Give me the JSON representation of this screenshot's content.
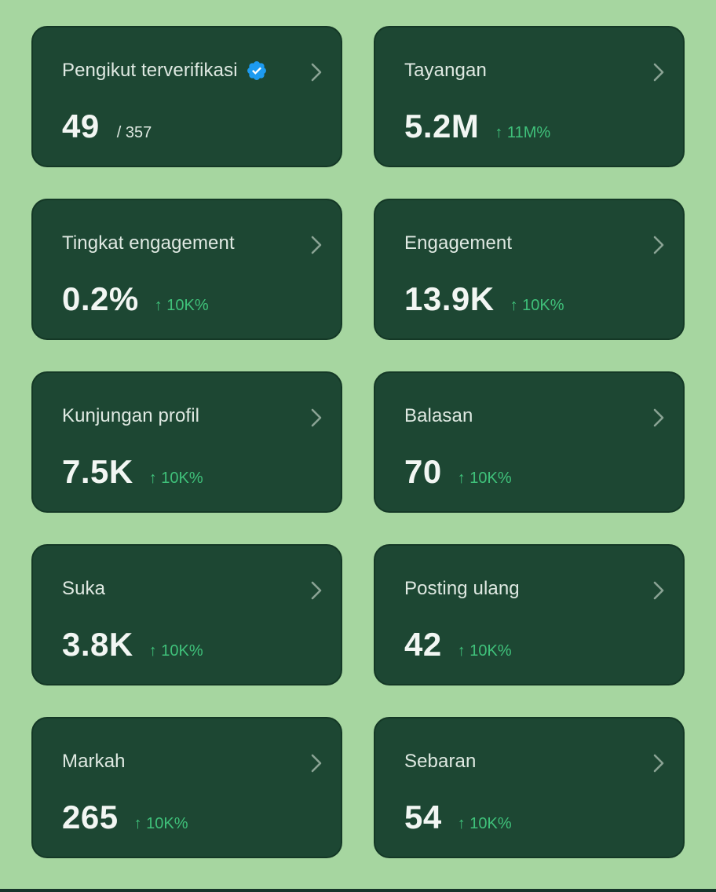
{
  "cards": [
    {
      "title": "Pengikut terverifikasi",
      "value": "49",
      "total": "/ 357",
      "verified_icon": "verified-badge-icon",
      "badge_color": "#1d9bf0"
    },
    {
      "title": "Tayangan",
      "value": "5.2M",
      "change": "↑ 11M%"
    },
    {
      "title": "Tingkat engagement",
      "value": "0.2%",
      "change": "↑ 10K%"
    },
    {
      "title": "Engagement",
      "value": "13.9K",
      "change": "↑ 10K%"
    },
    {
      "title": "Kunjungan profil",
      "value": "7.5K",
      "change": "↑ 10K%"
    },
    {
      "title": "Balasan",
      "value": "70",
      "change": "↑ 10K%"
    },
    {
      "title": "Suka",
      "value": "3.8K",
      "change": "↑ 10K%"
    },
    {
      "title": "Posting ulang",
      "value": "42",
      "change": "↑ 10K%"
    },
    {
      "title": "Markah",
      "value": "265",
      "change": "↑ 10K%"
    },
    {
      "title": "Sebaran",
      "value": "54",
      "change": "↑ 10K%"
    }
  ],
  "colors": {
    "background": "#a6d6a0",
    "card": "#1d4733",
    "positive_change": "#3fc17a"
  }
}
